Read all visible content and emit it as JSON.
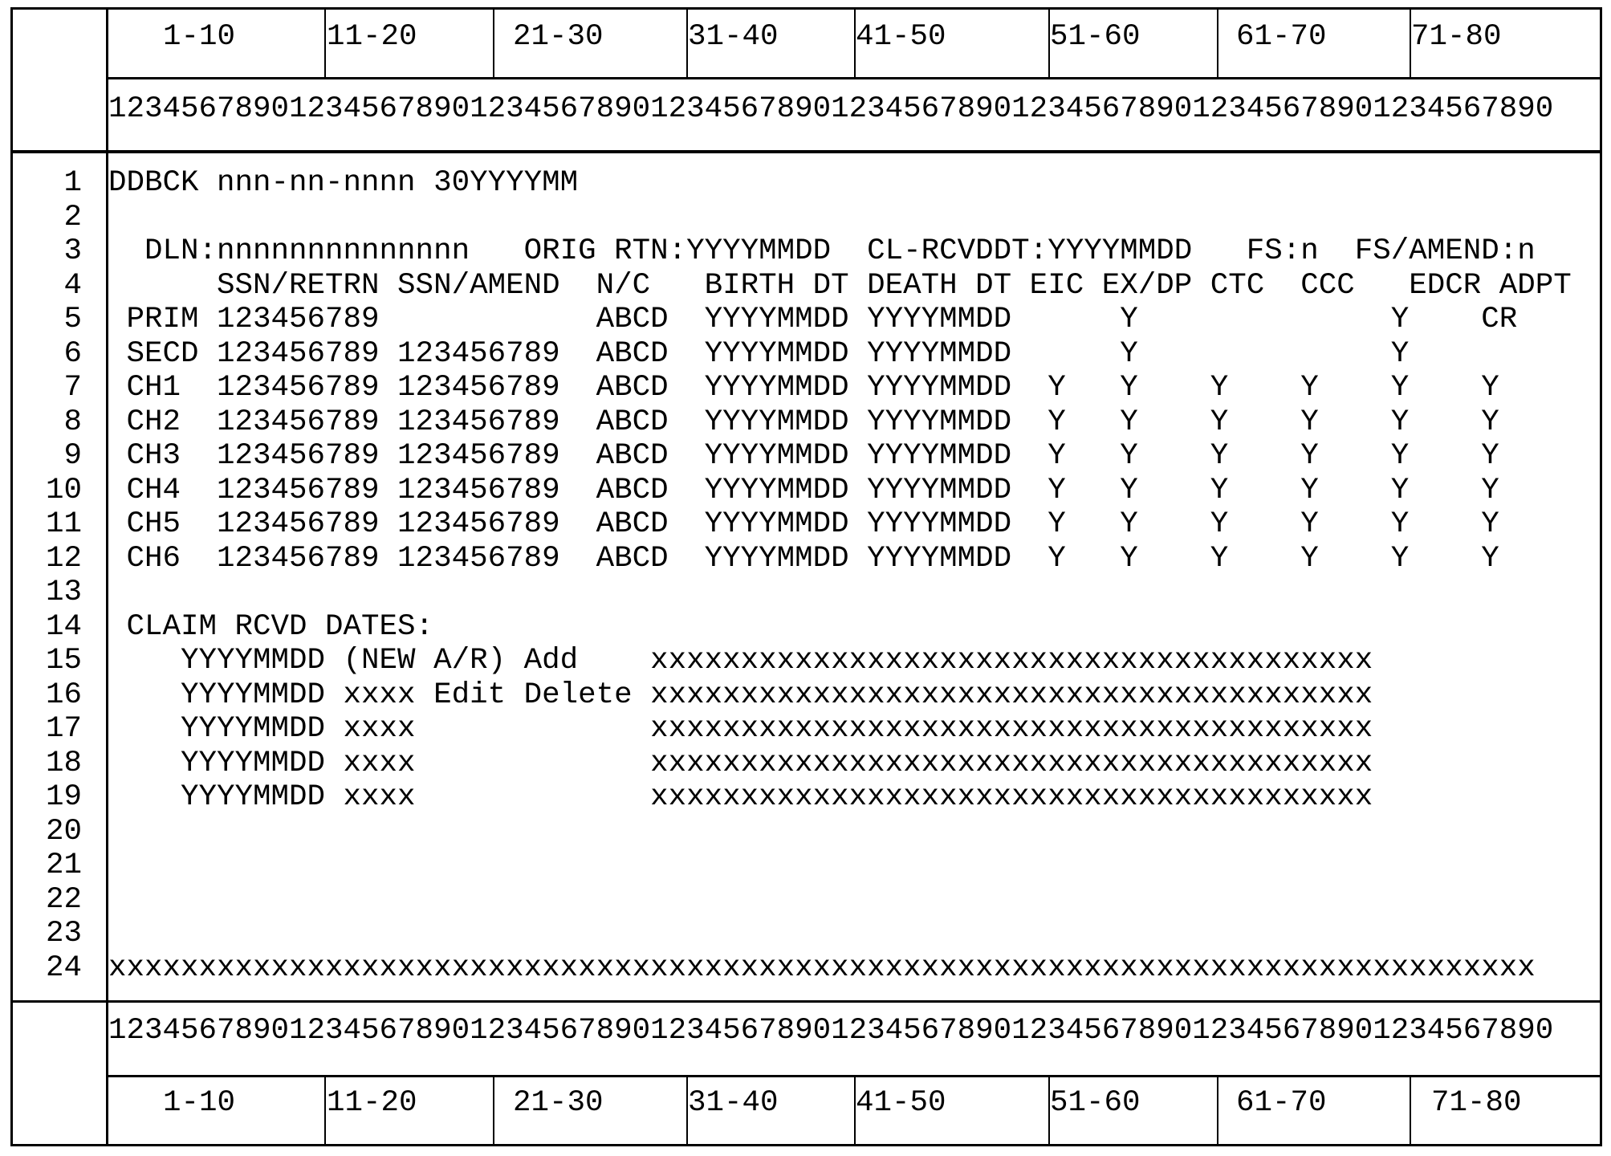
{
  "top_header": {
    "labels": [
      "1-10",
      "11-20",
      "21-30",
      "31-40",
      "41-50",
      "51-60",
      "61-70",
      "71-80"
    ],
    "ruler": "12345678901234567890123456789012345678901234567890123456789012345678901234567890"
  },
  "bottom_header": {
    "labels": [
      "1-10",
      "11-20",
      "21-30",
      "31-40",
      "41-50",
      "51-60",
      "61-70",
      "71-80"
    ],
    "ruler": "12345678901234567890123456789012345678901234567890123456789012345678901234567890"
  },
  "screen": {
    "line_numbers": [
      "1",
      "2",
      "3",
      "4",
      "5",
      "6",
      "7",
      "8",
      "9",
      "10",
      "11",
      "12",
      "13",
      "14",
      "15",
      "16",
      "17",
      "18",
      "19",
      "20",
      "21",
      "22",
      "23",
      "24"
    ],
    "lines": [
      "DDBCK nnn-nn-nnnn 30YYYYMM",
      "",
      "  DLN:nnnnnnnnnnnnnn   ORIG RTN:YYYYMMDD  CL-RCVDDT:YYYYMMDD   FS:n  FS/AMEND:n",
      "      SSN/RETRN SSN/AMEND  N/C   BIRTH DT DEATH DT EIC EX/DP CTC  CCC   EDCR ADPT",
      " PRIM 123456789            ABCD  YYYYMMDD YYYYMMDD      Y              Y    CR",
      " SECD 123456789 123456789  ABCD  YYYYMMDD YYYYMMDD      Y              Y",
      " CH1  123456789 123456789  ABCD  YYYYMMDD YYYYMMDD  Y   Y    Y    Y    Y    Y",
      " CH2  123456789 123456789  ABCD  YYYYMMDD YYYYMMDD  Y   Y    Y    Y    Y    Y",
      " CH3  123456789 123456789  ABCD  YYYYMMDD YYYYMMDD  Y   Y    Y    Y    Y    Y",
      " CH4  123456789 123456789  ABCD  YYYYMMDD YYYYMMDD  Y   Y    Y    Y    Y    Y",
      " CH5  123456789 123456789  ABCD  YYYYMMDD YYYYMMDD  Y   Y    Y    Y    Y    Y",
      " CH6  123456789 123456789  ABCD  YYYYMMDD YYYYMMDD  Y   Y    Y    Y    Y    Y",
      "",
      " CLAIM RCVD DATES:",
      "    YYYYMMDD (NEW A/R) Add    xxxxxxxxxxxxxxxxxxxxxxxxxxxxxxxxxxxxxxxx",
      "    YYYYMMDD xxxx Edit Delete xxxxxxxxxxxxxxxxxxxxxxxxxxxxxxxxxxxxxxxx",
      "    YYYYMMDD xxxx             xxxxxxxxxxxxxxxxxxxxxxxxxxxxxxxxxxxxxxxx",
      "    YYYYMMDD xxxx             xxxxxxxxxxxxxxxxxxxxxxxxxxxxxxxxxxxxxxxx",
      "    YYYYMMDD xxxx             xxxxxxxxxxxxxxxxxxxxxxxxxxxxxxxxxxxxxxxx",
      "",
      "",
      "",
      "",
      "xxxxxxxxxxxxxxxxxxxxxxxxxxxxxxxxxxxxxxxxxxxxxxxxxxxxxxxxxxxxxxxxxxxxxxxxxxxxxxx"
    ]
  }
}
